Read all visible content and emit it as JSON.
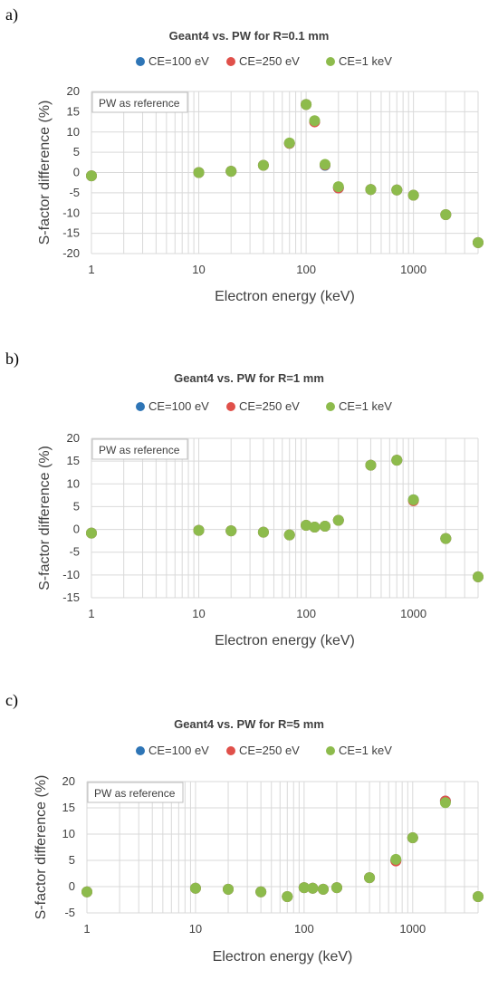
{
  "colors": {
    "ce100": "#2E75B6",
    "ce250": "#E0504A",
    "ce1k": "#8DBB4C",
    "grid": "#D9D9D9",
    "text": "#404040"
  },
  "chart_data": [
    {
      "type": "scatter",
      "panel_label": "a)",
      "title": "Geant4 vs. PW for R=0.1 mm",
      "xlabel": "Electron energy (keV)",
      "ylabel": "S-factor difference (%)",
      "x_scale": "log",
      "xlim": [
        1,
        4000
      ],
      "ylim": [
        -20,
        20
      ],
      "x_ticks": [
        "1",
        "10",
        "100",
        "1000"
      ],
      "y_ticks": [
        "20",
        "15",
        "10",
        "5",
        "0",
        "-5",
        "-10",
        "-15",
        "-20"
      ],
      "grid": true,
      "legend_position": "top",
      "annotation": "PW as reference",
      "x": [
        1,
        10,
        20,
        40,
        70,
        100,
        120,
        150,
        200,
        400,
        700,
        1000,
        2000,
        4000
      ],
      "series": [
        {
          "name": "CE=100 eV",
          "values": [
            -0.8,
            0.0,
            0.3,
            1.8,
            7.2,
            16.8,
            12.6,
            1.8,
            -3.8,
            -4.2,
            -4.3,
            -5.6,
            -10.4,
            -17.3
          ]
        },
        {
          "name": "CE=250 eV",
          "values": [
            -0.8,
            0.0,
            0.3,
            1.8,
            7.2,
            16.8,
            12.5,
            1.9,
            -3.8,
            -4.2,
            -4.3,
            -5.6,
            -10.4,
            -17.3
          ]
        },
        {
          "name": "CE=1 keV",
          "values": [
            -0.8,
            0.0,
            0.3,
            1.8,
            7.3,
            16.8,
            12.8,
            2.0,
            -3.5,
            -4.2,
            -4.3,
            -5.6,
            -10.4,
            -17.3
          ]
        }
      ]
    },
    {
      "type": "scatter",
      "panel_label": "b)",
      "title": "Geant4 vs. PW for R=1 mm",
      "xlabel": "Electron energy (keV)",
      "ylabel": "S-factor difference (%)",
      "x_scale": "log",
      "xlim": [
        1,
        4000
      ],
      "ylim": [
        -15,
        20
      ],
      "x_ticks": [
        "1",
        "10",
        "100",
        "1000"
      ],
      "y_ticks": [
        "20",
        "15",
        "10",
        "5",
        "0",
        "-5",
        "-10",
        "-15"
      ],
      "grid": true,
      "legend_position": "top",
      "annotation": "PW as reference",
      "x": [
        1,
        10,
        20,
        40,
        70,
        100,
        120,
        150,
        200,
        400,
        700,
        1000,
        2000,
        4000
      ],
      "series": [
        {
          "name": "CE=100 eV",
          "values": [
            -0.8,
            -0.2,
            -0.3,
            -0.6,
            -1.2,
            0.9,
            0.5,
            0.7,
            2.0,
            14.1,
            15.2,
            6.5,
            -2.0,
            -10.4
          ]
        },
        {
          "name": "CE=250 eV",
          "values": [
            -0.8,
            -0.2,
            -0.3,
            -0.6,
            -1.2,
            0.9,
            0.5,
            0.7,
            2.0,
            14.1,
            15.2,
            6.3,
            -2.0,
            -10.4
          ]
        },
        {
          "name": "CE=1 keV",
          "values": [
            -0.8,
            -0.2,
            -0.3,
            -0.6,
            -1.2,
            0.9,
            0.5,
            0.7,
            2.0,
            14.1,
            15.2,
            6.5,
            -2.0,
            -10.4
          ]
        }
      ]
    },
    {
      "type": "scatter",
      "panel_label": "c)",
      "title": "Geant4 vs. PW for R=5 mm",
      "xlabel": "Electron energy (keV)",
      "ylabel": "S-factor difference (%)",
      "x_scale": "log",
      "xlim": [
        1,
        4000
      ],
      "ylim": [
        -5,
        20
      ],
      "x_ticks": [
        "1",
        "10",
        "100",
        "1000"
      ],
      "y_ticks": [
        "20",
        "15",
        "10",
        "5",
        "0",
        "-5"
      ],
      "grid": true,
      "legend_position": "top",
      "annotation": "PW as reference",
      "x": [
        1,
        10,
        20,
        40,
        70,
        100,
        120,
        150,
        200,
        400,
        700,
        1000,
        2000,
        4000
      ],
      "series": [
        {
          "name": "CE=100 eV",
          "values": [
            -1.0,
            -0.3,
            -0.5,
            -1.0,
            -1.9,
            -0.2,
            -0.3,
            -0.5,
            -0.2,
            1.7,
            5.0,
            9.3,
            16.3,
            -1.9
          ]
        },
        {
          "name": "CE=250 eV",
          "values": [
            -1.0,
            -0.3,
            -0.5,
            -1.0,
            -1.9,
            -0.2,
            -0.3,
            -0.5,
            -0.2,
            1.7,
            4.9,
            9.3,
            16.3,
            -1.9
          ]
        },
        {
          "name": "CE=1 keV",
          "values": [
            -1.0,
            -0.3,
            -0.5,
            -1.0,
            -1.9,
            -0.2,
            -0.3,
            -0.5,
            -0.2,
            1.7,
            5.2,
            9.3,
            16.0,
            -1.9
          ]
        }
      ]
    }
  ]
}
